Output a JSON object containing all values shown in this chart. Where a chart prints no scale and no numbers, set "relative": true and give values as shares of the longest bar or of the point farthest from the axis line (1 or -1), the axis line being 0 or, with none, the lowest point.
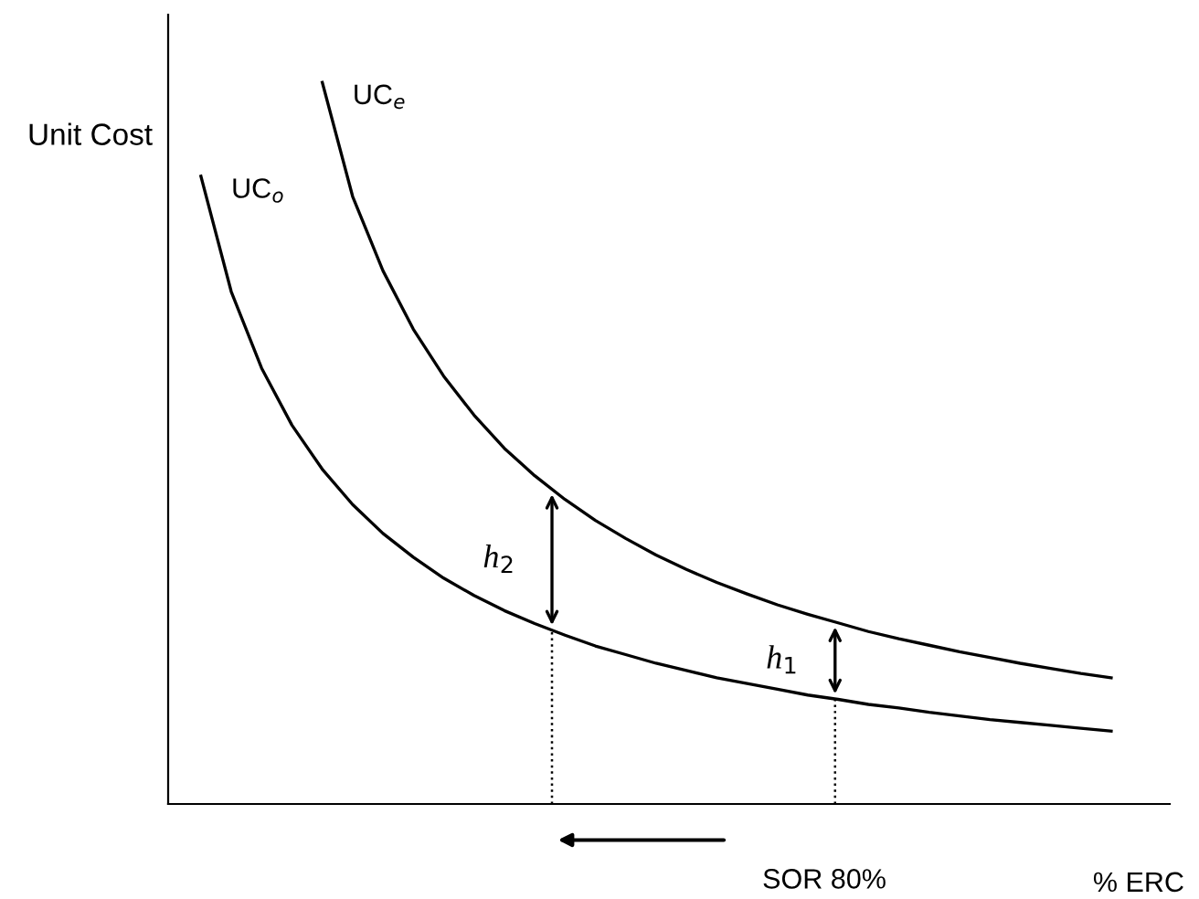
{
  "chart_data": {
    "type": "line",
    "relative": true,
    "xlabel": "% ERC",
    "ylabel": "Unit Cost",
    "grid": false,
    "legend": false,
    "marker": "none",
    "line_style": "solid",
    "categories": [
      null,
      null,
      null,
      null,
      null,
      null,
      null,
      null,
      null,
      null,
      null,
      null,
      null,
      null,
      null,
      null,
      null,
      null,
      null,
      null,
      null,
      null,
      null,
      null,
      null,
      null,
      null,
      null,
      null,
      null,
      null
    ],
    "series": [
      {
        "name": "UC$_{o}$",
        "color": "#000000",
        "values": [
          0.87,
          0.71,
          0.604,
          0.525,
          0.464,
          0.415,
          0.375,
          0.342,
          0.313,
          0.289,
          0.268,
          0.25,
          0.234,
          0.219,
          0.207,
          0.195,
          0.185,
          0.175,
          0.167,
          0.159,
          0.151,
          0.145,
          0.138,
          0.133,
          0.127,
          0.122,
          0.117,
          0.113,
          0.109,
          0.105,
          0.101
        ]
      },
      {
        "name": "UC$_{e}$",
        "color": "#000000",
        "values": [
          null,
          null,
          null,
          null,
          1.0,
          0.842,
          0.739,
          0.658,
          0.593,
          0.539,
          0.493,
          0.455,
          0.422,
          0.393,
          0.368,
          0.345,
          0.325,
          0.307,
          0.291,
          0.276,
          0.263,
          0.251,
          0.239,
          0.229,
          0.22,
          0.211,
          0.203,
          0.195,
          0.188,
          0.181,
          0.175
        ]
      }
    ],
    "annotations": [
      "h$_{2}$",
      "h$_{1}$",
      "SOR 80%"
    ]
  }
}
